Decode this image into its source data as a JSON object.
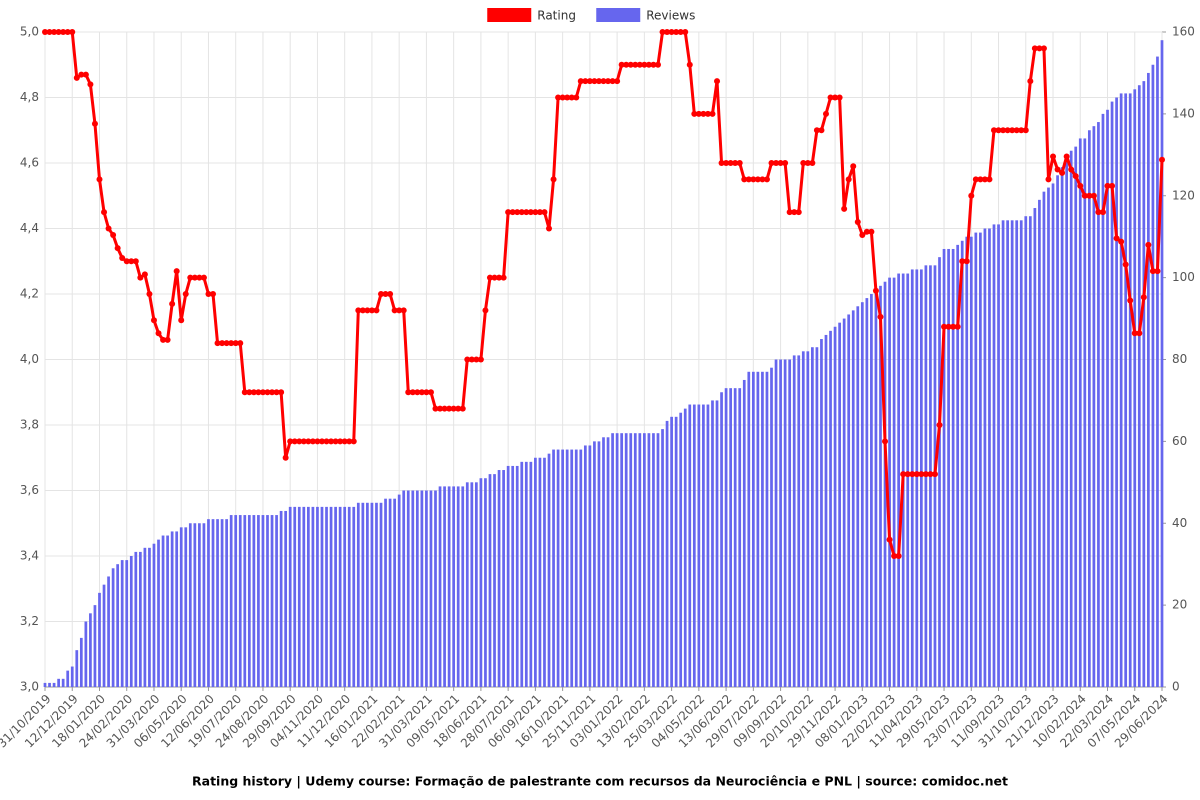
{
  "chart_data": {
    "type": "combo",
    "title": "Rating history | Udemy course: Formação de palestrante com recursos da Neurociência e PNL | source: comidoc.net",
    "categories": [
      "31/10/2019",
      null,
      null,
      null,
      null,
      null,
      "12/12/2019",
      null,
      null,
      null,
      null,
      null,
      "18/01/2020",
      null,
      null,
      null,
      null,
      null,
      "24/02/2020",
      null,
      null,
      null,
      null,
      null,
      "31/03/2020",
      null,
      null,
      null,
      null,
      null,
      "06/05/2020",
      null,
      null,
      null,
      null,
      null,
      "12/06/2020",
      null,
      null,
      null,
      null,
      null,
      "19/07/2020",
      null,
      null,
      null,
      null,
      null,
      "24/08/2020",
      null,
      null,
      null,
      null,
      null,
      "29/09/2020",
      null,
      null,
      null,
      null,
      null,
      "04/11/2020",
      null,
      null,
      null,
      null,
      null,
      "11/12/2020",
      null,
      null,
      null,
      null,
      null,
      "16/01/2021",
      null,
      null,
      null,
      null,
      null,
      "22/02/2021",
      null,
      null,
      null,
      null,
      null,
      "31/03/2021",
      null,
      null,
      null,
      null,
      null,
      "09/05/2021",
      null,
      null,
      null,
      null,
      null,
      "18/06/2021",
      null,
      null,
      null,
      null,
      null,
      "28/07/2021",
      null,
      null,
      null,
      null,
      null,
      "06/09/2021",
      null,
      null,
      null,
      null,
      null,
      "16/10/2021",
      null,
      null,
      null,
      null,
      null,
      "25/11/2021",
      null,
      null,
      null,
      null,
      null,
      "03/01/2022",
      null,
      null,
      null,
      null,
      null,
      "13/02/2022",
      null,
      null,
      null,
      null,
      null,
      "25/03/2022",
      null,
      null,
      null,
      null,
      null,
      "04/05/2022",
      null,
      null,
      null,
      null,
      null,
      "13/06/2022",
      null,
      null,
      null,
      null,
      null,
      "29/07/2022",
      null,
      null,
      null,
      null,
      null,
      "09/09/2022",
      null,
      null,
      null,
      null,
      null,
      "20/10/2022",
      null,
      null,
      null,
      null,
      null,
      "29/11/2022",
      null,
      null,
      null,
      null,
      null,
      "08/01/2023",
      null,
      null,
      null,
      null,
      null,
      "22/02/2023",
      null,
      null,
      null,
      null,
      null,
      "11/04/2023",
      null,
      null,
      null,
      null,
      null,
      "29/05/2023",
      null,
      null,
      null,
      null,
      null,
      "23/07/2023",
      null,
      null,
      null,
      null,
      null,
      "11/09/2023",
      null,
      null,
      null,
      null,
      null,
      "31/10/2023",
      null,
      null,
      null,
      null,
      null,
      "21/12/2023",
      null,
      null,
      null,
      null,
      null,
      "10/02/2024",
      null,
      null,
      null,
      null,
      null,
      "22/03/2024",
      null,
      null,
      null,
      null,
      null,
      "07/05/2024",
      null,
      null,
      null,
      null,
      null,
      "29/06/2024"
    ],
    "series": [
      {
        "name": "Rating",
        "type": "line",
        "color": "#ff0000",
        "values": [
          5,
          5,
          5,
          5,
          5,
          5,
          5,
          4.86,
          4.87,
          4.87,
          4.84,
          4.72,
          4.55,
          4.45,
          4.4,
          4.38,
          4.34,
          4.31,
          4.3,
          4.3,
          4.3,
          4.25,
          4.26,
          4.2,
          4.12,
          4.08,
          4.06,
          4.06,
          4.17,
          4.27,
          4.12,
          4.2,
          4.25,
          4.25,
          4.25,
          4.25,
          4.2,
          4.2,
          4.05,
          4.05,
          4.05,
          4.05,
          4.05,
          4.05,
          3.9,
          3.9,
          3.9,
          3.9,
          3.9,
          3.9,
          3.9,
          3.9,
          3.9,
          3.7,
          3.75,
          3.75,
          3.75,
          3.75,
          3.75,
          3.75,
          3.75,
          3.75,
          3.75,
          3.75,
          3.75,
          3.75,
          3.75,
          3.75,
          3.75,
          4.15,
          4.15,
          4.15,
          4.15,
          4.15,
          4.2,
          4.2,
          4.2,
          4.15,
          4.15,
          4.15,
          3.9,
          3.9,
          3.9,
          3.9,
          3.9,
          3.9,
          3.85,
          3.85,
          3.85,
          3.85,
          3.85,
          3.85,
          3.85,
          4,
          4,
          4,
          4,
          4.15,
          4.25,
          4.25,
          4.25,
          4.25,
          4.45,
          4.45,
          4.45,
          4.45,
          4.45,
          4.45,
          4.45,
          4.45,
          4.45,
          4.4,
          4.55,
          4.8,
          4.8,
          4.8,
          4.8,
          4.8,
          4.85,
          4.85,
          4.85,
          4.85,
          4.85,
          4.85,
          4.85,
          4.85,
          4.85,
          4.9,
          4.9,
          4.9,
          4.9,
          4.9,
          4.9,
          4.9,
          4.9,
          4.9,
          5,
          5,
          5,
          5,
          5,
          5,
          4.9,
          4.75,
          4.75,
          4.75,
          4.75,
          4.75,
          4.85,
          4.6,
          4.6,
          4.6,
          4.6,
          4.6,
          4.55,
          4.55,
          4.55,
          4.55,
          4.55,
          4.55,
          4.6,
          4.6,
          4.6,
          4.6,
          4.45,
          4.45,
          4.45,
          4.6,
          4.6,
          4.6,
          4.7,
          4.7,
          4.75,
          4.8,
          4.8,
          4.8,
          4.46,
          4.55,
          4.59,
          4.42,
          4.38,
          4.39,
          4.39,
          4.21,
          4.13,
          3.75,
          3.45,
          3.4,
          3.4,
          3.65,
          3.65,
          3.65,
          3.65,
          3.65,
          3.65,
          3.65,
          3.65,
          3.8,
          4.1,
          4.1,
          4.1,
          4.1,
          4.3,
          4.3,
          4.5,
          4.55,
          4.55,
          4.55,
          4.55,
          4.7,
          4.7,
          4.7,
          4.7,
          4.7,
          4.7,
          4.7,
          4.7,
          4.85,
          4.95,
          4.95,
          4.95,
          4.55,
          4.62,
          4.58,
          4.57,
          4.62,
          4.58,
          4.56,
          4.53,
          4.5,
          4.5,
          4.5,
          4.45,
          4.45,
          4.53,
          4.53,
          4.37,
          4.36,
          4.29,
          4.18,
          4.08,
          4.08,
          4.19,
          4.35,
          4.27,
          4.27,
          4.61
        ]
      },
      {
        "name": "Reviews",
        "type": "bar",
        "axis": "y2",
        "color": "#6666ee",
        "values": [
          1,
          1,
          1,
          2,
          2,
          4,
          5,
          9,
          12,
          16,
          18,
          20,
          23,
          25,
          27,
          29,
          30,
          31,
          31,
          32,
          33,
          33,
          34,
          34,
          35,
          36,
          37,
          37,
          38,
          38,
          39,
          39,
          40,
          40,
          40,
          40,
          41,
          41,
          41,
          41,
          41,
          42,
          42,
          42,
          42,
          42,
          42,
          42,
          42,
          42,
          42,
          42,
          43,
          43,
          44,
          44,
          44,
          44,
          44,
          44,
          44,
          44,
          44,
          44,
          44,
          44,
          44,
          44,
          44,
          45,
          45,
          45,
          45,
          45,
          45,
          46,
          46,
          46,
          47,
          48,
          48,
          48,
          48,
          48,
          48,
          48,
          48,
          49,
          49,
          49,
          49,
          49,
          49,
          50,
          50,
          50,
          51,
          51,
          52,
          52,
          53,
          53,
          54,
          54,
          54,
          55,
          55,
          55,
          56,
          56,
          56,
          57,
          58,
          58,
          58,
          58,
          58,
          58,
          58,
          59,
          59,
          60,
          60,
          61,
          61,
          62,
          62,
          62,
          62,
          62,
          62,
          62,
          62,
          62,
          62,
          62,
          63,
          65,
          66,
          66,
          67,
          68,
          69,
          69,
          69,
          69,
          69,
          70,
          70,
          72,
          73,
          73,
          73,
          73,
          75,
          77,
          77,
          77,
          77,
          77,
          78,
          80,
          80,
          80,
          80,
          81,
          81,
          82,
          82,
          83,
          83,
          85,
          86,
          87,
          88,
          89,
          90,
          91,
          92,
          93,
          94,
          95,
          96,
          97,
          98,
          99,
          100,
          100,
          101,
          101,
          101,
          102,
          102,
          102,
          103,
          103,
          103,
          105,
          107,
          107,
          107,
          108,
          109,
          110,
          110,
          111,
          111,
          112,
          112,
          113,
          113,
          114,
          114,
          114,
          114,
          114,
          115,
          115,
          117,
          119,
          121,
          122,
          123,
          125,
          127,
          129,
          131,
          132,
          134,
          134,
          136,
          137,
          138,
          140,
          141,
          143,
          144,
          145,
          145,
          145,
          146,
          147,
          148,
          150,
          152,
          154,
          158
        ]
      }
    ],
    "ylim": [
      3,
      5
    ],
    "yticks": [
      {
        "value": 3,
        "label": "3,0"
      },
      {
        "value": 3.2,
        "label": "3,2"
      },
      {
        "value": 3.4,
        "label": "3,4"
      },
      {
        "value": 3.6,
        "label": "3,6"
      },
      {
        "value": 3.8,
        "label": "3,8"
      },
      {
        "value": 4,
        "label": "4,0"
      },
      {
        "value": 4.2,
        "label": "4,2"
      },
      {
        "value": 4.4,
        "label": "4,4"
      },
      {
        "value": 4.6,
        "label": "4,6"
      },
      {
        "value": 4.8,
        "label": "4,8"
      },
      {
        "value": 5,
        "label": "5,0"
      }
    ],
    "y2lim": [
      0,
      160
    ],
    "y2ticks": [
      0,
      20,
      40,
      60,
      80,
      100,
      120,
      140,
      160
    ],
    "grid": true,
    "legend": "top"
  }
}
